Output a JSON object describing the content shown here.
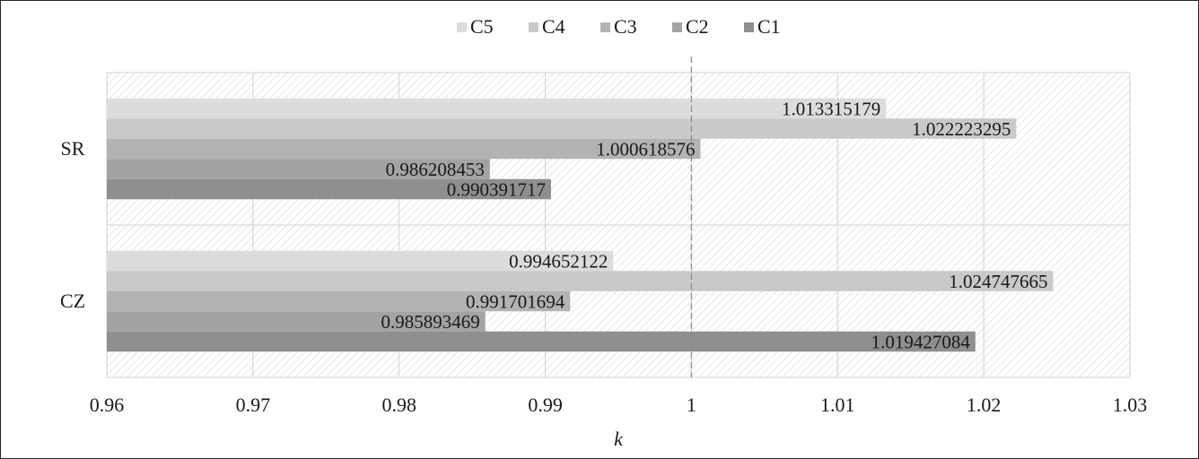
{
  "chart_data": {
    "type": "bar",
    "orientation": "horizontal",
    "title": "",
    "xlabel": "k",
    "ylabel": "",
    "categories": [
      "SR",
      "CZ"
    ],
    "series": [
      {
        "name": "C5",
        "color": "#dcdcdc",
        "values": [
          1.013315179,
          0.994652122
        ],
        "labels": [
          "1.013315179",
          "0.994652122"
        ]
      },
      {
        "name": "C4",
        "color": "#c9c9c9",
        "values": [
          1.022223295,
          1.024747665
        ],
        "labels": [
          "1.022223295",
          "1.024747665"
        ]
      },
      {
        "name": "C3",
        "color": "#b3b3b3",
        "values": [
          1.000618576,
          0.991701694
        ],
        "labels": [
          "1.000618576",
          "0.991701694"
        ]
      },
      {
        "name": "C2",
        "color": "#a3a3a3",
        "values": [
          0.986208453,
          0.985893469
        ],
        "labels": [
          "0.986208453",
          "0.985893469"
        ]
      },
      {
        "name": "C1",
        "color": "#8f8f8f",
        "values": [
          0.990391717,
          1.019427084
        ],
        "labels": [
          "0.990391717",
          "1.019427084"
        ]
      }
    ],
    "xlim": [
      0.96,
      1.03
    ],
    "xticks": [
      0.96,
      0.97,
      0.98,
      0.99,
      1,
      1.01,
      1.02,
      1.03
    ],
    "xtick_labels": [
      "0.96",
      "0.97",
      "0.98",
      "0.99",
      "1",
      "1.01",
      "1.02",
      "1.03"
    ],
    "reference_line": 1,
    "grid": true,
    "legend_position": "top-center"
  }
}
